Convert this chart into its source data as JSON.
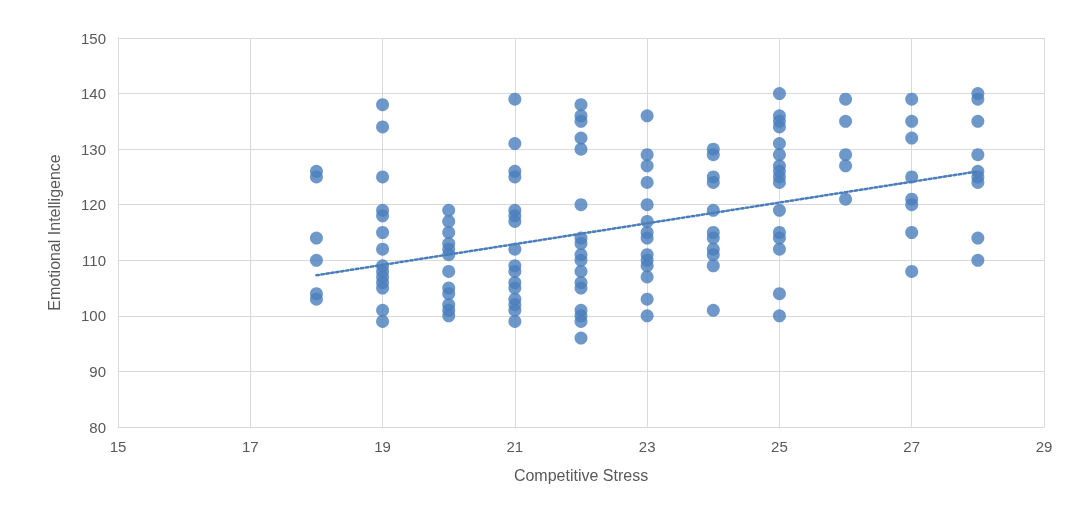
{
  "chart_data": {
    "type": "scatter",
    "xlabel": "Competitive Stress",
    "ylabel": "Emotional Intelligence",
    "xlim": [
      15,
      29
    ],
    "xticks": [
      15,
      17,
      19,
      21,
      23,
      25,
      27,
      29
    ],
    "ylim": [
      80,
      150
    ],
    "yticks": [
      80,
      90,
      100,
      110,
      120,
      130,
      140,
      150
    ],
    "grid": true,
    "marker": "circle",
    "series": [
      {
        "color": "#4a7ebb",
        "x": [
          18,
          18,
          18,
          18,
          18,
          18,
          19,
          19,
          19,
          19,
          19,
          19,
          19,
          19,
          19,
          19,
          19,
          19,
          19,
          19,
          20,
          20,
          20,
          20,
          20,
          20,
          20,
          20,
          20,
          20,
          20,
          20,
          21,
          21,
          21,
          21,
          21,
          21,
          21,
          21,
          21,
          21,
          21,
          21,
          21,
          21,
          21,
          21,
          22,
          22,
          22,
          22,
          22,
          22,
          22,
          22,
          22,
          22,
          22,
          22,
          22,
          22,
          22,
          22,
          22,
          23,
          23,
          23,
          23,
          23,
          23,
          23,
          23,
          23,
          23,
          23,
          23,
          23,
          23,
          24,
          24,
          24,
          24,
          24,
          24,
          24,
          24,
          24,
          24,
          24,
          25,
          25,
          25,
          25,
          25,
          25,
          25,
          25,
          25,
          25,
          25,
          25,
          25,
          25,
          25,
          25,
          26,
          26,
          26,
          26,
          26,
          27,
          27,
          27,
          27,
          27,
          27,
          27,
          27,
          28,
          28,
          28,
          28,
          28,
          28,
          28,
          28,
          28
        ],
        "values": [
          126,
          125,
          114,
          110,
          104,
          103,
          138,
          134,
          125,
          119,
          118,
          115,
          112,
          109,
          108,
          107,
          106,
          105,
          101,
          99,
          119,
          117,
          115,
          113,
          112,
          111,
          108,
          105,
          104,
          102,
          101,
          100,
          139,
          131,
          126,
          125,
          119,
          118,
          117,
          112,
          109,
          108,
          106,
          105,
          103,
          102,
          101,
          99,
          138,
          136,
          135,
          132,
          130,
          120,
          114,
          113,
          111,
          110,
          108,
          106,
          105,
          101,
          100,
          99,
          96,
          136,
          129,
          127,
          124,
          120,
          117,
          115,
          114,
          111,
          110,
          109,
          107,
          103,
          100,
          130,
          129,
          125,
          124,
          119,
          115,
          114,
          112,
          111,
          109,
          101,
          140,
          136,
          135,
          134,
          131,
          129,
          127,
          126,
          125,
          124,
          119,
          115,
          114,
          112,
          104,
          100,
          139,
          135,
          129,
          127,
          121,
          139,
          135,
          132,
          125,
          121,
          120,
          115,
          108,
          140,
          139,
          135,
          129,
          126,
          125,
          124,
          114,
          110
        ]
      },
      {
        "type": "line",
        "color": "#4a7ebb",
        "line_style": "dotted",
        "marker": "none",
        "x": [
          18,
          28
        ],
        "values": [
          107.3,
          126
        ]
      }
    ]
  }
}
